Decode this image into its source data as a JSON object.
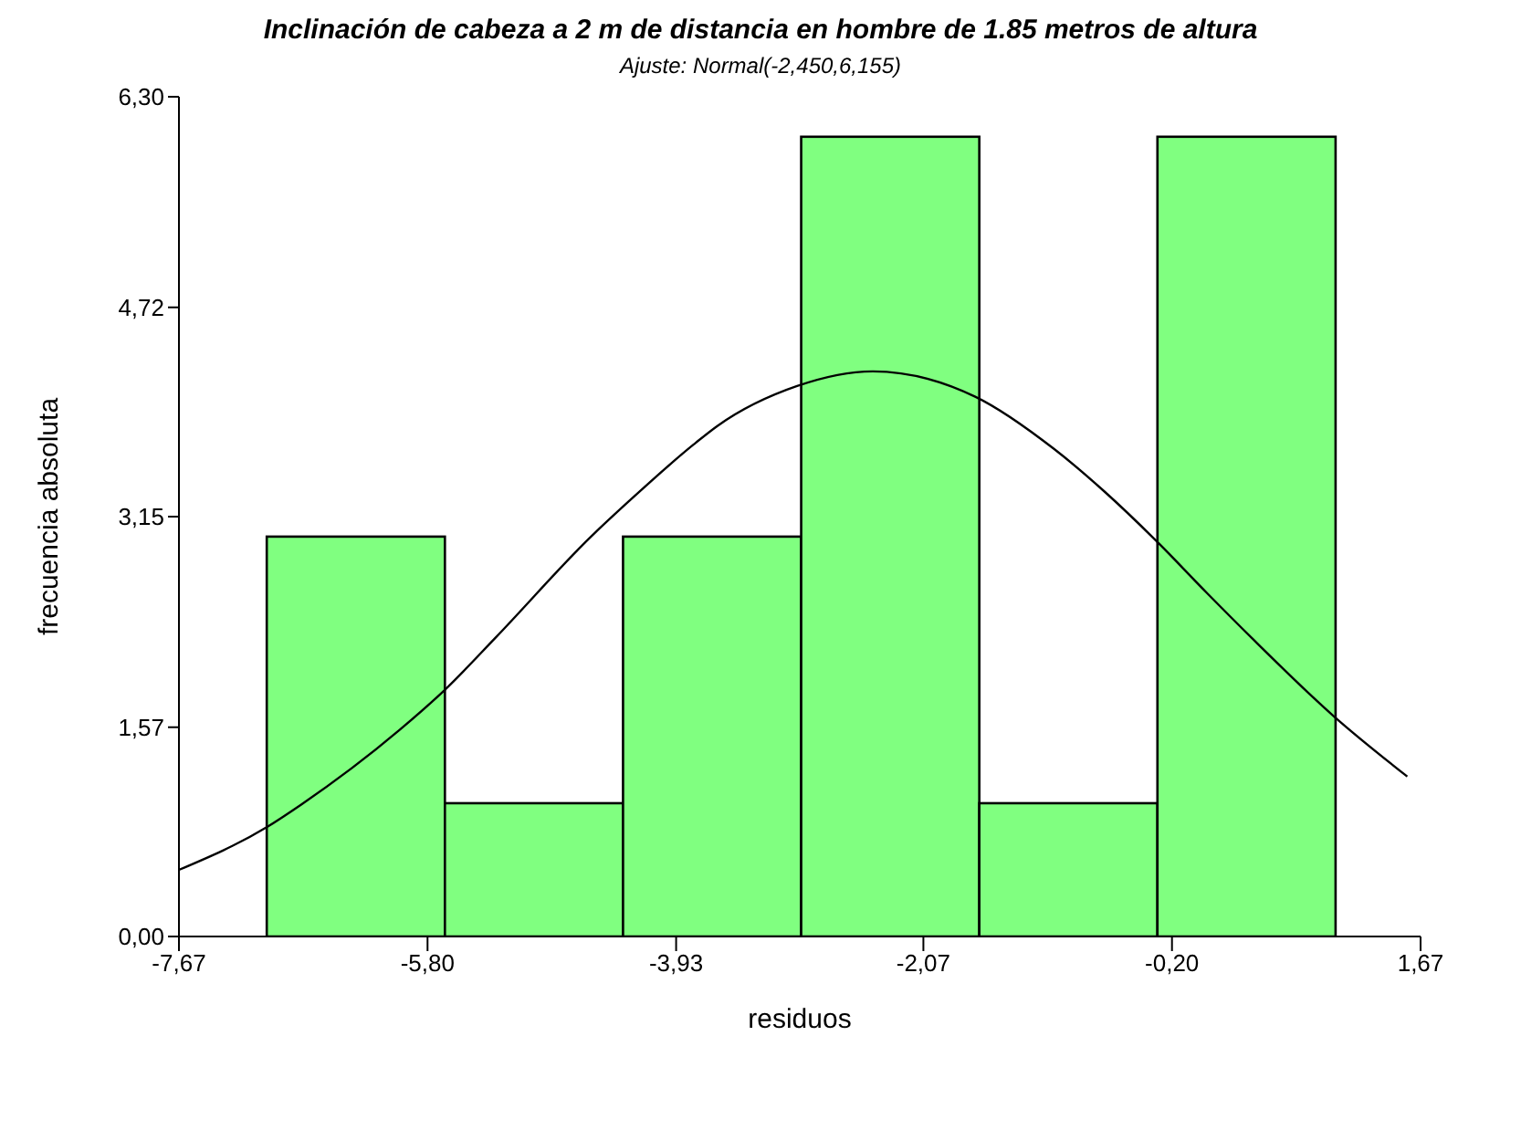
{
  "chart_data": {
    "type": "histogram",
    "title": "Inclinación de cabeza a 2 m de distancia en hombre de 1.85 metros de altura",
    "subtitle": "Ajuste: Normal(-2,450,6,155)",
    "xlabel": "residuos",
    "ylabel": "frecuencia absoluta",
    "bins": [
      -7.01,
      -5.67,
      -4.33,
      -2.99,
      -1.65,
      -0.31,
      1.03
    ],
    "values": [
      3,
      1,
      3,
      6,
      1,
      6
    ],
    "color": "#80ff80",
    "series": [
      {
        "type": "line",
        "color": "#000000",
        "x": [
          -7.67,
          -7.01,
          -6.75,
          -6.01,
          -5.67,
          -5.29,
          -4.57,
          -4.28,
          -3.8,
          -3.62,
          -3.02,
          -2.45,
          -1.68,
          -1.09,
          -0.71,
          -0.33,
          0.06,
          0.4,
          1.02,
          1.57
        ],
        "values": [
          0.5,
          0.82,
          0.99,
          1.55,
          1.85,
          2.24,
          3.0,
          3.27,
          3.69,
          3.83,
          4.13,
          4.24,
          4.05,
          3.66,
          3.34,
          2.98,
          2.58,
          2.24,
          1.65,
          1.2
        ]
      }
    ],
    "xlim": [
      -7.67,
      1.67
    ],
    "xticks": [
      {
        "value": -7.67,
        "label": "-7,67"
      },
      {
        "value": -5.8,
        "label": "-5,80"
      },
      {
        "value": -3.93,
        "label": "-3,93"
      },
      {
        "value": -2.07,
        "label": "-2,07"
      },
      {
        "value": -0.2,
        "label": "-0,20"
      },
      {
        "value": 1.67,
        "label": "1,67"
      }
    ],
    "ylim": [
      0,
      6.3
    ],
    "yticks": [
      {
        "value": 0,
        "label": "0,00"
      },
      {
        "value": 1.57,
        "label": "1,57"
      },
      {
        "value": 3.15,
        "label": "3,15"
      },
      {
        "value": 4.72,
        "label": "4,72"
      },
      {
        "value": 6.3,
        "label": "6,30"
      }
    ],
    "marker": "none",
    "line_style": "solid"
  }
}
